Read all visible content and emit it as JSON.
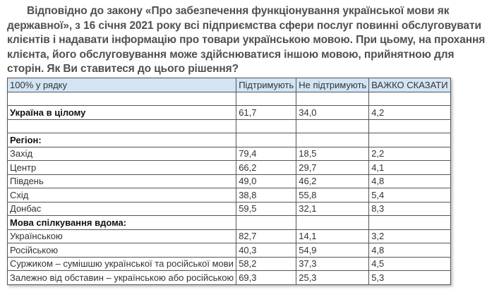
{
  "question": "Відповідно до закону «Про забезпечення функціонування української мови як державної», з 16 січня 2021 року всі підприємства сфери послуг повинні обслуговувати клієнтів і надавати інформацію про товари українською мовою. При цьому, на прохання клієнта, його обслуговування може здійснюватися іншою мовою, прийнятною для сторін. Як Ви ставитеся до цього рішення?",
  "table": {
    "headers": [
      "100% у рядку",
      "Підтримують",
      "Не підтримують",
      "ВАЖКО СКАЗАТИ"
    ],
    "rows": [
      {
        "label": "",
        "values": [
          "",
          "",
          ""
        ],
        "bold": false
      },
      {
        "label": "Україна в цілому",
        "values": [
          "61,7",
          "34,0",
          "4,2"
        ],
        "bold": true
      },
      {
        "label": "",
        "values": [
          "",
          "",
          ""
        ],
        "bold": false
      },
      {
        "label": "Регіон:",
        "values": [
          "",
          "",
          ""
        ],
        "bold": true
      },
      {
        "label": "Захід",
        "values": [
          "79,4",
          "18,5",
          "2,2"
        ],
        "bold": false
      },
      {
        "label": "Центр",
        "values": [
          "66,2",
          "29,7",
          "4,1"
        ],
        "bold": false
      },
      {
        "label": "Південь",
        "values": [
          "49,0",
          "46,2",
          "4,8"
        ],
        "bold": false
      },
      {
        "label": "Схід",
        "values": [
          "38,8",
          "55,8",
          "5,4"
        ],
        "bold": false
      },
      {
        "label": "Донбас",
        "values": [
          "59,5",
          "32,1",
          "8,3"
        ],
        "bold": false
      },
      {
        "label": "Мова спілкування вдома:",
        "values": [
          "",
          "",
          ""
        ],
        "bold": true
      },
      {
        "label": "Українською",
        "values": [
          "82,7",
          "14,1",
          "3,2"
        ],
        "bold": false
      },
      {
        "label": "Російською",
        "values": [
          "40,3",
          "54,9",
          "4,8"
        ],
        "bold": false
      },
      {
        "label": "Суржиком – сумішшю української та російської мови",
        "values": [
          "58,2",
          "37,3",
          "4,5"
        ],
        "bold": false
      },
      {
        "label": "Залежно від обставин – українською або російською",
        "values": [
          "69,3",
          "25,3",
          "5,3"
        ],
        "bold": false
      }
    ]
  }
}
